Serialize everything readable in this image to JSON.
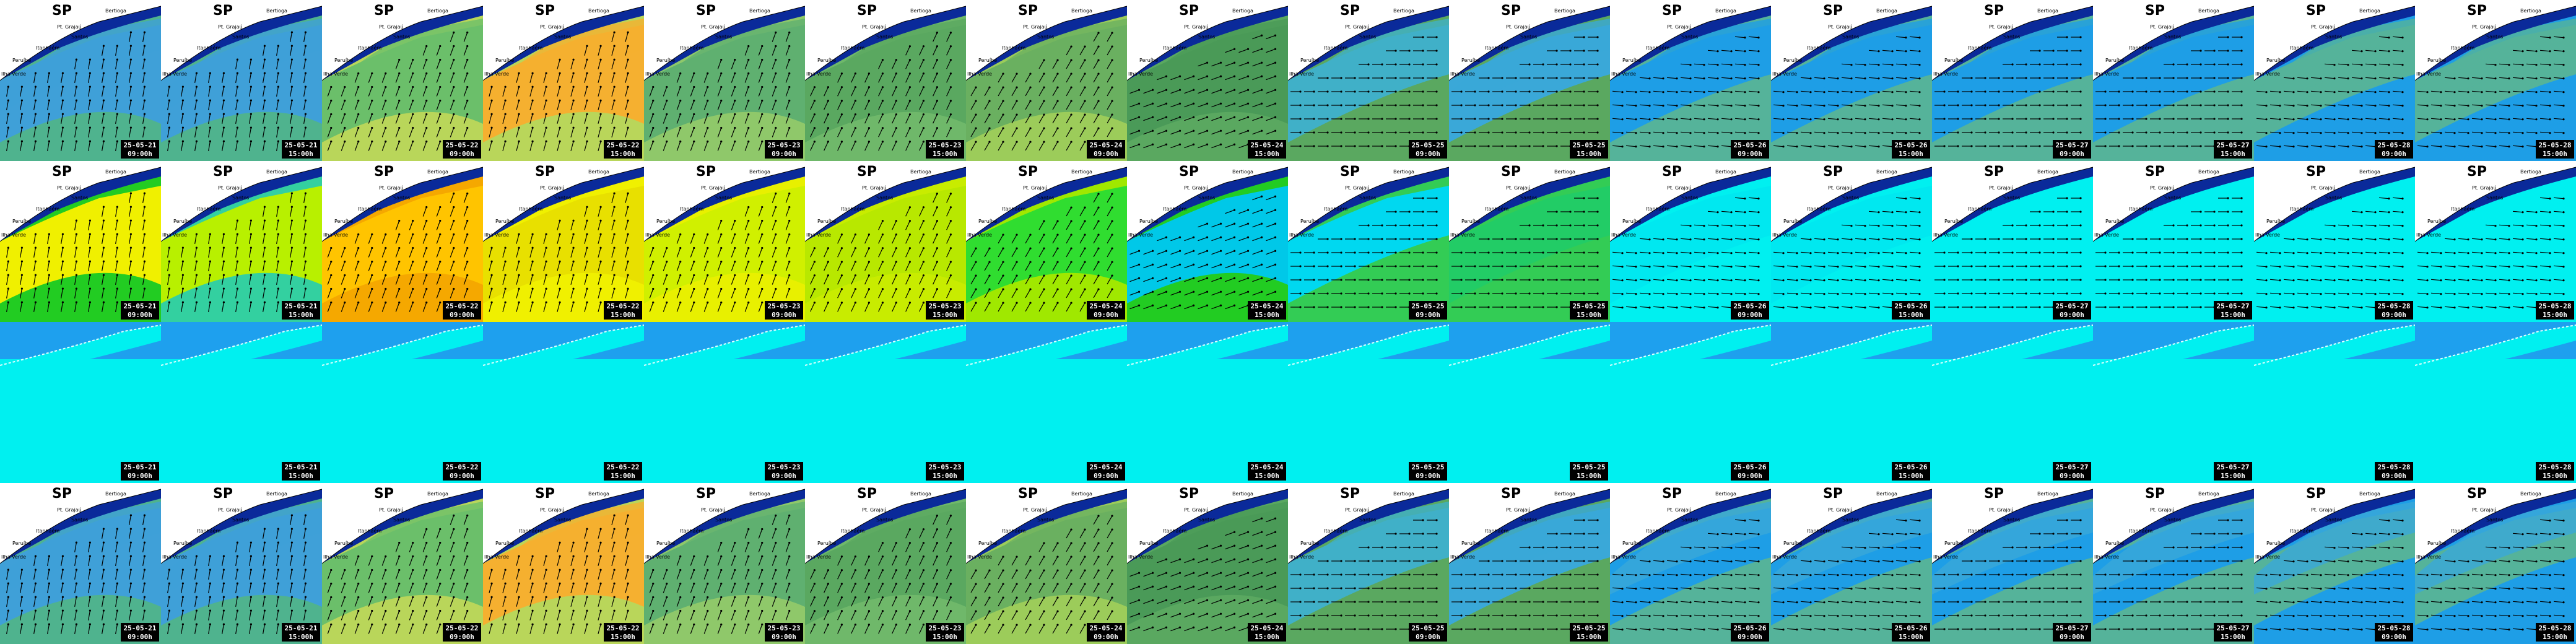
{
  "title": "SP",
  "places": [
    "Bertioga",
    "Pt. Grajaú",
    "Santos",
    "Itanhaém",
    "Peruíbe",
    "Ilha Verde"
  ],
  "columns": [
    {
      "date": "25-05-21",
      "time": "09:00h"
    },
    {
      "date": "25-05-21",
      "time": "15:00h"
    },
    {
      "date": "25-05-22",
      "time": "09:00h"
    },
    {
      "date": "25-05-22",
      "time": "15:00h"
    },
    {
      "date": "25-05-23",
      "time": "09:00h"
    },
    {
      "date": "25-05-23",
      "time": "15:00h"
    },
    {
      "date": "25-05-24",
      "time": "09:00h"
    },
    {
      "date": "25-05-24",
      "time": "15:00h"
    },
    {
      "date": "25-05-25",
      "time": "09:00h"
    },
    {
      "date": "25-05-25",
      "time": "15:00h"
    },
    {
      "date": "25-05-26",
      "time": "09:00h"
    },
    {
      "date": "25-05-26",
      "time": "15:00h"
    },
    {
      "date": "25-05-27",
      "time": "09:00h"
    },
    {
      "date": "25-05-27",
      "time": "15:00h"
    },
    {
      "date": "25-05-28",
      "time": "09:00h"
    },
    {
      "date": "25-05-28",
      "time": "15:00h"
    }
  ]
}
